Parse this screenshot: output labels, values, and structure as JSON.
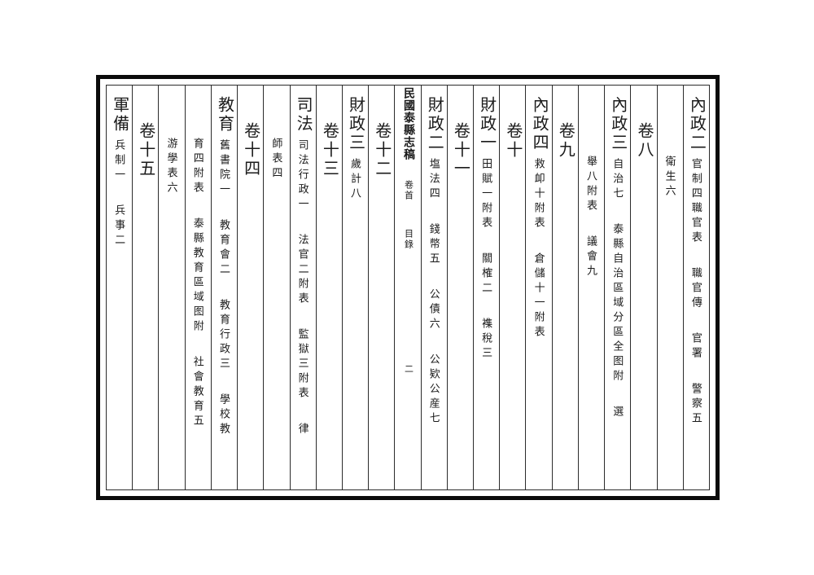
{
  "book": {
    "title": "民國泰縣志稿",
    "part": "卷首",
    "section": "目錄",
    "folio": "二"
  },
  "colors": {
    "background": "#ffffff",
    "ink": "#1b1b1b",
    "frame_border": "#0b0b0b",
    "rule_lines": "#2b2b2b"
  },
  "columns": [
    {
      "name": "neizheng-2",
      "type": "section",
      "segments": [
        {
          "text": "內政二",
          "kind": "header"
        },
        {
          "text": "官制四職官表",
          "kind": "item"
        },
        {
          "text": "職官傳",
          "kind": "item"
        },
        {
          "text": "官署",
          "kind": "item"
        },
        {
          "text": "警察五",
          "kind": "item"
        }
      ]
    },
    {
      "name": "neizheng-2-cont",
      "type": "continuation",
      "after": "h3",
      "segments": [
        {
          "text": "衛生六",
          "kind": "item"
        }
      ]
    },
    {
      "name": "juan-8",
      "type": "volume",
      "segments": [
        {
          "text": "卷八",
          "kind": "volume"
        }
      ]
    },
    {
      "name": "neizheng-3",
      "type": "section",
      "segments": [
        {
          "text": "內政三",
          "kind": "header"
        },
        {
          "text": "自治七",
          "kind": "item"
        },
        {
          "text": "泰縣自治區域分區全图附",
          "kind": "item"
        },
        {
          "text": "選",
          "kind": "item"
        }
      ]
    },
    {
      "name": "neizheng-3-cont",
      "type": "continuation",
      "after": "h3",
      "segments": [
        {
          "text": "舉八附表",
          "kind": "item"
        },
        {
          "text": "議會九",
          "kind": "item"
        }
      ]
    },
    {
      "name": "juan-9",
      "type": "volume",
      "segments": [
        {
          "text": "卷九",
          "kind": "volume"
        }
      ]
    },
    {
      "name": "neizheng-4",
      "type": "section",
      "segments": [
        {
          "text": "內政四",
          "kind": "header"
        },
        {
          "text": "救卹十附表",
          "kind": "item"
        },
        {
          "text": "倉儲十一附表",
          "kind": "item"
        }
      ]
    },
    {
      "name": "juan-10",
      "type": "volume",
      "segments": [
        {
          "text": "卷十",
          "kind": "volume"
        }
      ]
    },
    {
      "name": "caizheng-1",
      "type": "section",
      "segments": [
        {
          "text": "財政一",
          "kind": "header"
        },
        {
          "text": "田賦一附表",
          "kind": "item"
        },
        {
          "text": "關榷二",
          "kind": "item"
        },
        {
          "text": "襍稅三",
          "kind": "item"
        }
      ]
    },
    {
      "name": "juan-11",
      "type": "volume",
      "segments": [
        {
          "text": "卷十一",
          "kind": "volume"
        }
      ]
    },
    {
      "name": "caizheng-2",
      "type": "section",
      "segments": [
        {
          "text": "財政二",
          "kind": "header"
        },
        {
          "text": "塩法四",
          "kind": "item"
        },
        {
          "text": "錢幣五",
          "kind": "item"
        },
        {
          "text": "公債六",
          "kind": "item"
        },
        {
          "text": "公欵公産七",
          "kind": "item"
        }
      ]
    },
    {
      "name": "banxin-title",
      "type": "center",
      "segments": [
        {
          "text": "民國泰縣志稿",
          "kind": "title"
        },
        {
          "text": "卷首",
          "kind": "center_a"
        },
        {
          "text": "目錄",
          "kind": "center_b"
        },
        {
          "text": "二",
          "kind": "folio"
        }
      ]
    },
    {
      "name": "juan-12",
      "type": "volume",
      "segments": [
        {
          "text": "卷十二",
          "kind": "volume"
        }
      ]
    },
    {
      "name": "caizheng-3",
      "type": "section",
      "segments": [
        {
          "text": "財政三",
          "kind": "header"
        },
        {
          "text": "歲計八",
          "kind": "item"
        }
      ]
    },
    {
      "name": "juan-13",
      "type": "volume",
      "segments": [
        {
          "text": "卷十三",
          "kind": "volume"
        }
      ]
    },
    {
      "name": "sifa",
      "type": "section",
      "segments": [
        {
          "text": "司法",
          "kind": "header"
        },
        {
          "text": "司法行政一",
          "kind": "item"
        },
        {
          "text": "法官二附表",
          "kind": "item"
        },
        {
          "text": "監獄三附表",
          "kind": "item"
        },
        {
          "text": "律",
          "kind": "item"
        }
      ]
    },
    {
      "name": "sifa-cont",
      "type": "continuation",
      "after": "h2",
      "segments": [
        {
          "text": "師表四",
          "kind": "item"
        }
      ]
    },
    {
      "name": "juan-14",
      "type": "volume",
      "segments": [
        {
          "text": "卷十四",
          "kind": "volume"
        }
      ]
    },
    {
      "name": "jiaoyu",
      "type": "section",
      "segments": [
        {
          "text": "教育",
          "kind": "header"
        },
        {
          "text": "舊書院一",
          "kind": "item"
        },
        {
          "text": "教育會二",
          "kind": "item"
        },
        {
          "text": "教育行政三",
          "kind": "item"
        },
        {
          "text": "學校教",
          "kind": "item"
        }
      ]
    },
    {
      "name": "jiaoyu-cont-1",
      "type": "continuation",
      "after": "h2",
      "segments": [
        {
          "text": "育四附表",
          "kind": "item"
        },
        {
          "text": "泰縣教育區域图附",
          "kind": "item"
        },
        {
          "text": "社會教育五",
          "kind": "item"
        }
      ]
    },
    {
      "name": "jiaoyu-cont-2",
      "type": "continuation",
      "after": "h2",
      "segments": [
        {
          "text": "游學表六",
          "kind": "item"
        }
      ]
    },
    {
      "name": "juan-15",
      "type": "volume",
      "segments": [
        {
          "text": "卷十五",
          "kind": "volume"
        }
      ]
    },
    {
      "name": "junbei",
      "type": "section",
      "segments": [
        {
          "text": "軍備",
          "kind": "header"
        },
        {
          "text": "兵制一",
          "kind": "item"
        },
        {
          "text": "兵事二",
          "kind": "item"
        }
      ]
    }
  ]
}
